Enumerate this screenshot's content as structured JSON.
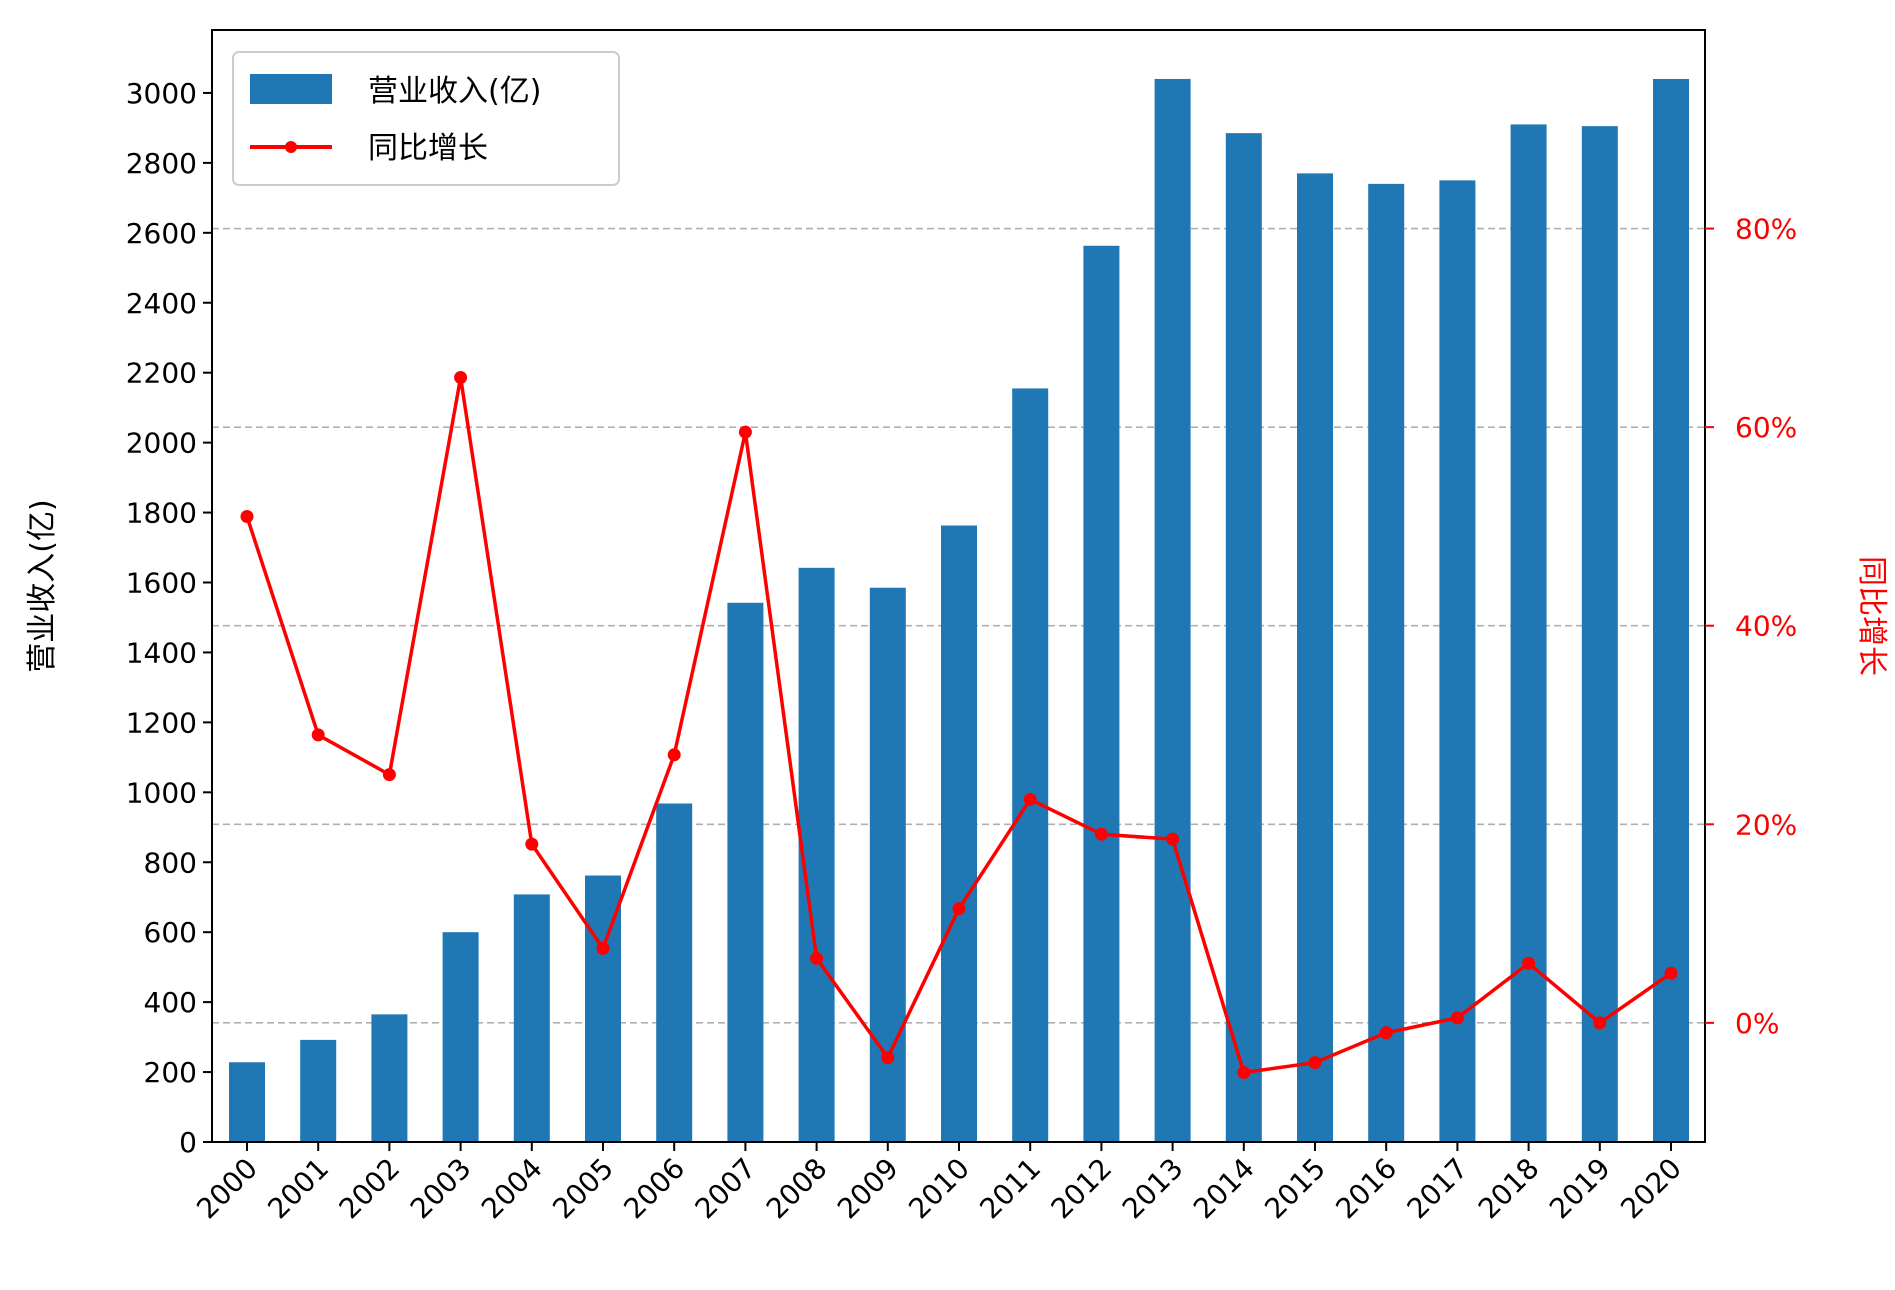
{
  "chart_data": {
    "type": "bar+line",
    "categories": [
      "2000",
      "2001",
      "2002",
      "2003",
      "2004",
      "2005",
      "2006",
      "2007",
      "2008",
      "2009",
      "2010",
      "2011",
      "2012",
      "2013",
      "2014",
      "2015",
      "2016",
      "2017",
      "2018",
      "2019",
      "2020"
    ],
    "series": [
      {
        "name": "营业收入(亿)",
        "type": "bar",
        "axis": "left",
        "values": [
          228,
          292,
          365,
          600,
          708,
          762,
          968,
          1542,
          1642,
          1585,
          1763,
          2155,
          2563,
          3040,
          2885,
          2770,
          2740,
          2750,
          2910,
          2905,
          3040
        ]
      },
      {
        "name": "同比增长",
        "type": "line",
        "axis": "right",
        "values": [
          51,
          29,
          25,
          65,
          18,
          7.5,
          27,
          59.5,
          6.5,
          -3.5,
          11.5,
          22.5,
          19,
          18.5,
          -5,
          -4,
          -1,
          0.5,
          6,
          0,
          5
        ]
      }
    ],
    "ylabel": "营业收入(亿)",
    "y2label": "同比增长",
    "ylim": [
      0,
      3180
    ],
    "yticks": [
      0,
      200,
      400,
      600,
      800,
      1000,
      1200,
      1400,
      1600,
      1800,
      2000,
      2200,
      2400,
      2600,
      2800,
      3000
    ],
    "y2lim": [
      -12,
      100
    ],
    "y2ticks": [
      0,
      20,
      40,
      60,
      80
    ],
    "y2tick_suffix": "%",
    "grid": "horizontal dashed on right axis",
    "legend_position": "top-left",
    "colors": {
      "bar": "#1f77b4",
      "line": "#ff0000",
      "grid": "#b0b0b0",
      "axis": "#000000"
    }
  }
}
